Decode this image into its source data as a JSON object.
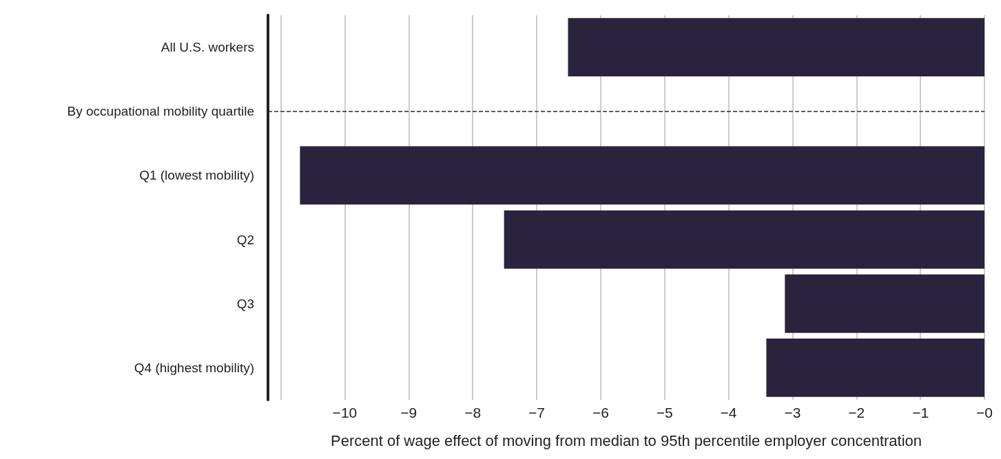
{
  "chart_data": {
    "type": "bar",
    "orientation": "horizontal",
    "xlabel": "Percent of wage effect of moving from median to 95th percentile employer concentration",
    "categories": [
      "All U.S. workers",
      "By occupational mobility quartile",
      "Q1 (lowest mobility)",
      "Q2",
      "Q3",
      "Q4 (highest mobility)"
    ],
    "values": [
      -6.51,
      null,
      -10.7,
      -7.51,
      -3.12,
      -3.41
    ],
    "color": "#29233d",
    "xlim": [
      -11.2,
      0
    ],
    "xticks": [
      {
        "value": -11,
        "label": null
      },
      {
        "value": -10,
        "label": "−10"
      },
      {
        "value": -9,
        "label": "−9"
      },
      {
        "value": -8,
        "label": "−8"
      },
      {
        "value": -7,
        "label": "−7"
      },
      {
        "value": -6,
        "label": "−6"
      },
      {
        "value": -5,
        "label": "−5"
      },
      {
        "value": -4,
        "label": "−4"
      },
      {
        "value": -3,
        "label": "−3"
      },
      {
        "value": -2,
        "label": "−2"
      },
      {
        "value": -1,
        "label": "−1"
      },
      {
        "value": 0,
        "label": "−0"
      }
    ],
    "ref_lines": [
      {
        "axis": "y",
        "value": "By occupational mobility quartile",
        "label": null,
        "color": "#29233d",
        "line_style": "dashed"
      }
    ],
    "grid": "x"
  }
}
